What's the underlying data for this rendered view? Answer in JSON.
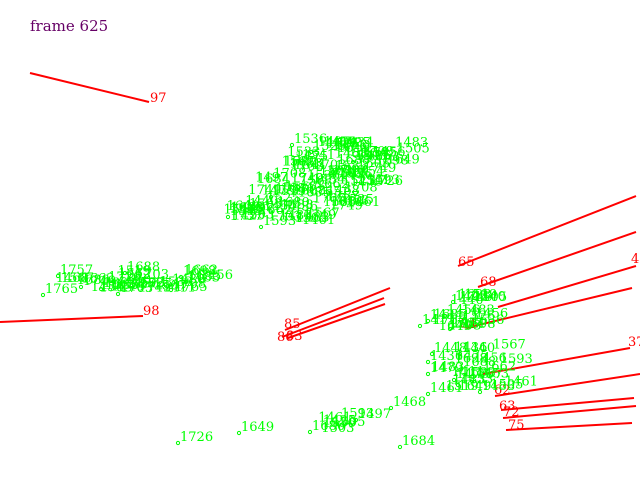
{
  "frame_label": "frame 625",
  "colors": {
    "background": "#ffffff",
    "title": "#660066",
    "track": "#ff0000",
    "point": "#00ff00"
  },
  "tracks": [
    {
      "id": "97"
    },
    {
      "id": "98"
    },
    {
      "id": "65"
    },
    {
      "id": "68"
    },
    {
      "id": "4"
    },
    {
      "id": "85"
    },
    {
      "id": "86"
    },
    {
      "id": "83"
    },
    {
      "id": "84"
    },
    {
      "id": "37"
    },
    {
      "id": "62"
    },
    {
      "id": "63"
    },
    {
      "id": "72"
    },
    {
      "id": "75"
    }
  ],
  "points": [
    {
      "id": "1536"
    },
    {
      "id": "1525"
    },
    {
      "id": "1505"
    },
    {
      "id": "1533"
    },
    {
      "id": "1567"
    },
    {
      "id": "1519"
    },
    {
      "id": "1503"
    },
    {
      "id": "1541"
    },
    {
      "id": "1593"
    },
    {
      "id": "1757"
    },
    {
      "id": "1662"
    },
    {
      "id": "1765"
    },
    {
      "id": "1688"
    },
    {
      "id": "1749"
    },
    {
      "id": "1703"
    },
    {
      "id": "1708"
    },
    {
      "id": "1698"
    },
    {
      "id": "1685"
    },
    {
      "id": "1425"
    },
    {
      "id": "1456"
    },
    {
      "id": "1434"
    },
    {
      "id": "1454"
    },
    {
      "id": "1411"
    },
    {
      "id": "1448"
    },
    {
      "id": "1440"
    },
    {
      "id": "1436"
    },
    {
      "id": "1479"
    },
    {
      "id": "1475"
    },
    {
      "id": "1461"
    },
    {
      "id": "1453"
    },
    {
      "id": "1483"
    },
    {
      "id": "1726"
    },
    {
      "id": "1649"
    },
    {
      "id": "1680"
    },
    {
      "id": "1497"
    },
    {
      "id": "1468"
    },
    {
      "id": "1684"
    }
  ]
}
